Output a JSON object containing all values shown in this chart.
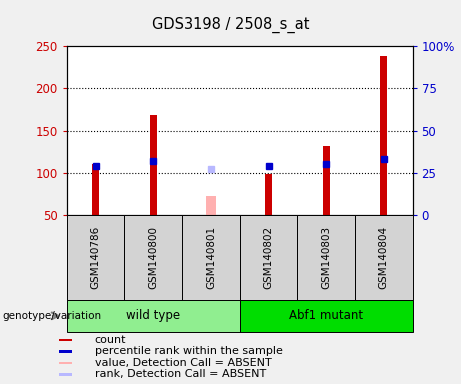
{
  "title": "GDS3198 / 2508_s_at",
  "samples": [
    "GSM140786",
    "GSM140800",
    "GSM140801",
    "GSM140802",
    "GSM140803",
    "GSM140804"
  ],
  "counts": [
    110,
    168,
    null,
    98,
    132,
    238
  ],
  "ranks": [
    29,
    32,
    null,
    29,
    30,
    33
  ],
  "absent_value": [
    null,
    null,
    72,
    null,
    null,
    null
  ],
  "absent_rank": [
    null,
    null,
    27,
    null,
    null,
    null
  ],
  "count_color": "#cc0000",
  "rank_color": "#0000cc",
  "absent_value_color": "#ffb0b0",
  "absent_rank_color": "#b8b8ff",
  "ylim_left": [
    50,
    250
  ],
  "ylim_right": [
    0,
    100
  ],
  "yticks_left": [
    50,
    100,
    150,
    200,
    250
  ],
  "yticks_right": [
    0,
    25,
    50,
    75,
    100
  ],
  "ytick_labels_right": [
    "0",
    "25",
    "50",
    "75",
    "100%"
  ],
  "grid_values": [
    100,
    150,
    200
  ],
  "bar_width": 0.12,
  "absent_bar_width": 0.18,
  "plot_bg": "#ffffff",
  "fig_bg": "#f0f0f0",
  "sample_box_color": "#d3d3d3",
  "wildtype_color": "#90ee90",
  "mutant_color": "#00dd00",
  "axis_left_color": "#cc0000",
  "axis_right_color": "#0000cc",
  "legend_items": [
    {
      "label": "count",
      "color": "#cc0000"
    },
    {
      "label": "percentile rank within the sample",
      "color": "#0000cc"
    },
    {
      "label": "value, Detection Call = ABSENT",
      "color": "#ffb0b0"
    },
    {
      "label": "rank, Detection Call = ABSENT",
      "color": "#b8b8ff"
    }
  ]
}
